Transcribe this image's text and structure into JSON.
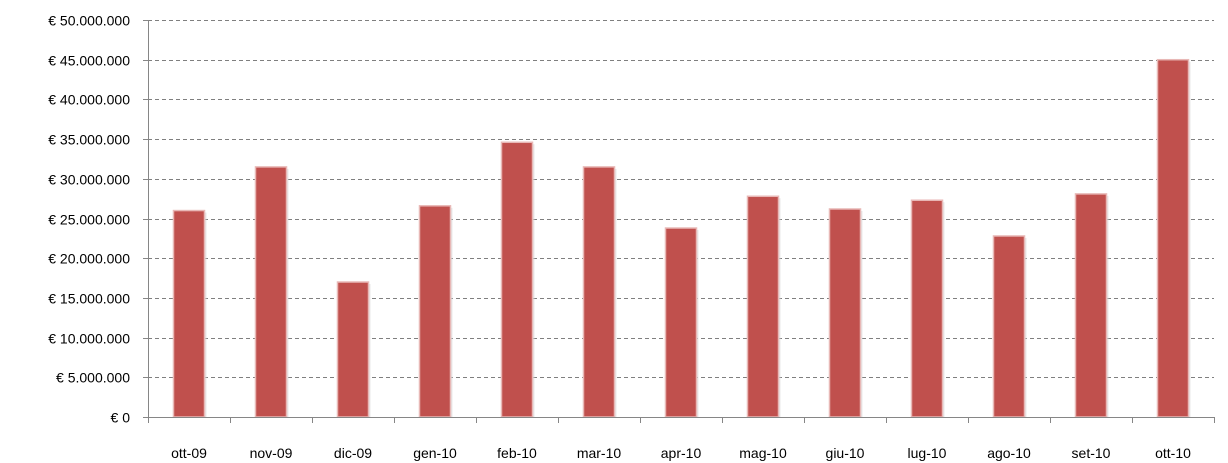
{
  "chart_data": {
    "type": "bar",
    "title": "",
    "xlabel": "",
    "ylabel": "",
    "categories": [
      "ott-09",
      "nov-09",
      "dic-09",
      "gen-10",
      "feb-10",
      "mar-10",
      "apr-10",
      "mag-10",
      "giu-10",
      "lug-10",
      "ago-10",
      "set-10",
      "ott-10"
    ],
    "values": [
      26000000,
      31500000,
      17000000,
      26600000,
      34600000,
      31500000,
      23800000,
      27800000,
      26200000,
      27300000,
      22800000,
      28100000,
      45000000
    ],
    "ylim": [
      0,
      50000000
    ],
    "yticks": [
      0,
      5000000,
      10000000,
      15000000,
      20000000,
      25000000,
      30000000,
      35000000,
      40000000,
      45000000,
      50000000
    ],
    "ytick_labels": [
      "€ 0",
      "€ 5.000.000",
      "€ 10.000.000",
      "€ 15.000.000",
      "€ 20.000.000",
      "€ 25.000.000",
      "€ 30.000.000",
      "€ 35.000.000",
      "€ 40.000.000",
      "€ 45.000.000",
      "€ 50.000.000"
    ],
    "grid": true,
    "grid_style": "dashed",
    "legend": "none",
    "colors": {
      "bar": "#c0504d",
      "bar_edge": "#e8b8b6",
      "grid": "#7f7f7f",
      "axis": "#868686",
      "text": "#000000"
    }
  }
}
